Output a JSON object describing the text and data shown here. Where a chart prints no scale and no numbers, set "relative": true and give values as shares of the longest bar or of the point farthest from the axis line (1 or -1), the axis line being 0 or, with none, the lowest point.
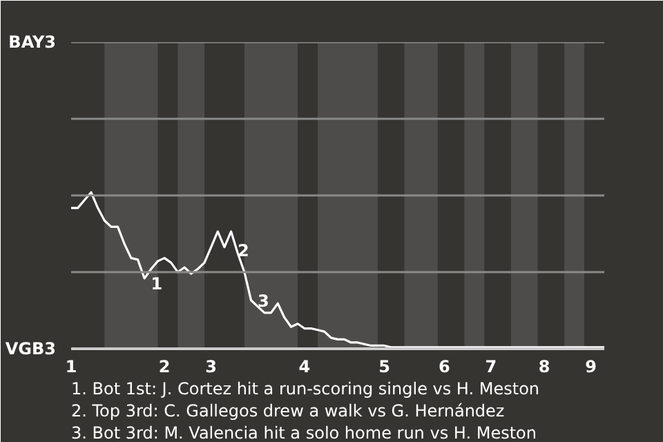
{
  "chart_data": {
    "type": "line",
    "relative": true,
    "categories": [
      "1",
      null,
      null,
      null,
      null,
      null,
      null,
      null,
      null,
      null,
      null,
      null,
      null,
      null,
      "2",
      null,
      null,
      null,
      null,
      null,
      null,
      "3",
      null,
      null,
      null,
      null,
      null,
      null,
      null,
      null,
      null,
      null,
      null,
      null,
      null,
      "4",
      null,
      null,
      null,
      null,
      null,
      null,
      null,
      null,
      null,
      null,
      null,
      "5",
      null,
      null,
      null,
      null,
      null,
      null,
      null,
      null,
      "6",
      null,
      null,
      null,
      null,
      null,
      null,
      "7",
      null,
      null,
      null,
      null,
      null,
      null,
      null,
      "8",
      null,
      null,
      null,
      null,
      null,
      null,
      "9",
      null,
      null
    ],
    "series": [
      {
        "color": "#ffffff",
        "values": [
          0.9,
          0.9,
          0.95,
          1,
          0.9,
          0.82,
          0.78,
          0.78,
          0.67,
          0.58,
          0.57,
          0.45,
          0.51,
          0.56,
          0.58,
          0.55,
          0.49,
          0.52,
          0.48,
          0.51,
          0.55,
          0.65,
          0.75,
          0.65,
          0.75,
          0.61,
          0.49,
          0.31,
          0.27,
          0.23,
          0.23,
          0.29,
          0.2,
          0.14,
          0.16,
          0.13,
          0.13,
          0.12,
          0.11,
          0.07,
          0.06,
          0.06,
          0.04,
          0.04,
          0.03,
          0.02,
          0.02,
          0.02,
          0.01,
          0.01,
          0.01,
          0.01,
          0.01,
          0.01,
          0.01,
          0.01,
          0.01,
          0.01,
          0.01,
          0.01,
          0.01,
          0.01,
          0.01,
          0.01,
          0.01,
          0.01,
          0.01,
          0.01,
          0.01,
          0.01,
          0.01,
          0.01,
          0.01,
          0.01,
          0.01,
          0.01,
          0.01,
          0.01,
          0.01,
          0.01,
          0.01
        ]
      }
    ],
    "ref_lines": [
      {
        "axis": "y",
        "value": 0.49,
        "color": "#8a8a8a"
      },
      {
        "axis": "y",
        "value": 0.98,
        "color": "#8a8a8a"
      },
      {
        "axis": "y",
        "value": 1.47,
        "color": "#8a8a8a"
      },
      {
        "axis": "y",
        "value": 1.96,
        "color": "#8a8a8a"
      }
    ],
    "annotations": [
      "BAY3",
      "VGB3",
      "1",
      "2",
      "3",
      "1. Bot 1st: J. Cortez hit a run-scoring single vs H. Meston",
      "2. Top 3rd: C. Gallegos drew a walk vs G. Hernández",
      "3. Bot 3rd: M. Valencia hit a solo home run vs H. Meston"
    ]
  }
}
